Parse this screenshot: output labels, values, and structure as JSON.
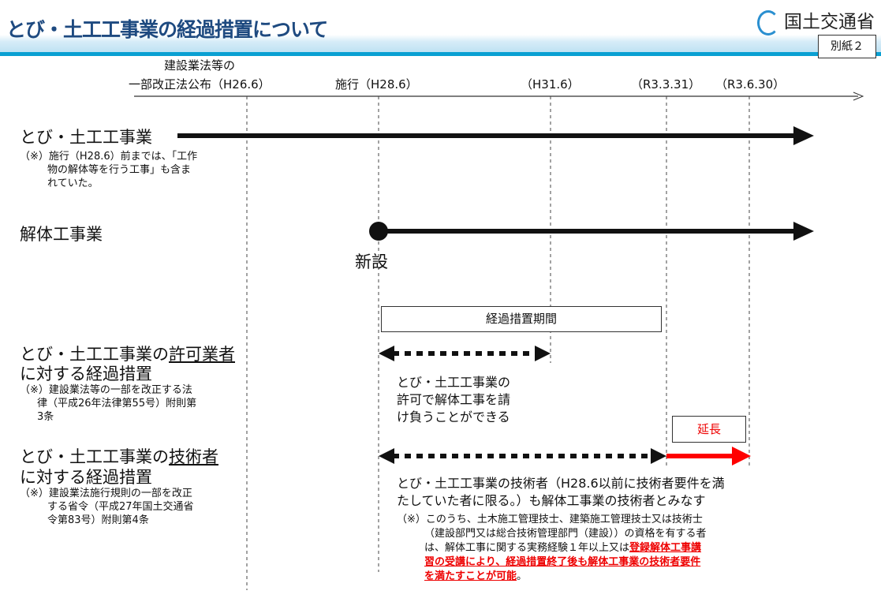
{
  "header": {
    "title": "とび・土工工事業の経過措置について",
    "logo_text": "国土交通省",
    "annex_label": "別紙２"
  },
  "timeline": {
    "ticks": [
      {
        "line1": "建設業法等の",
        "line2": "一部改正法公布（H26.6）"
      },
      {
        "label": "施行（H28.6）"
      },
      {
        "label": "（H31.6）"
      },
      {
        "label": "（R3.3.31）"
      },
      {
        "label": "（R3.6.30）"
      }
    ]
  },
  "rows": {
    "tobi": {
      "title": "とび・土工工事業",
      "note_lines": [
        "（※）施行（H28.6）前までは、「工作",
        "物の解体等を行う工事」も含ま",
        "れていた。"
      ]
    },
    "kaitai": {
      "title": "解体工事業",
      "new_label": "新設"
    },
    "period_box": "経過措置期間",
    "permit": {
      "title_pre": "とび・土工工事業の",
      "title_u": "許可業者",
      "title2": "に対する経過措置",
      "note_lines": [
        "（※）建設業法等の一部を改正する法",
        "律（平成26年法律第55号）附則第",
        "3条"
      ],
      "desc_lines": [
        "とび・土工工事業の",
        "許可で解体工事を請",
        "け負うことができる"
      ]
    },
    "engineer": {
      "title_pre": "とび・土工工事業の",
      "title_u": "技術者",
      "title2": "に対する経過措置",
      "note_lines": [
        "（※）建設業法施行規則の一部を改正",
        "する省令（平成27年国土交通省",
        "令第83号）附則第4条"
      ],
      "extension_label": "延長",
      "desc_lines": [
        "とび・土工工事業の技術者（H28.6以前に技術者要件を満",
        "たしていた者に限る。）も解体工事業の技術者とみなす"
      ],
      "sub_prefix": "（※）",
      "sub_lines": [
        "このうち、土木施工管理技士、建築施工管理技士又は技術士",
        "（建設部門又は総合技術管理部門（建設））の資格を有する者"
      ],
      "sub_line3": "は、解体工事に関する実務経験１年以上又は",
      "sub_red1": "登録解体工事講",
      "sub_red2": "習の受講により、経過措置終了後も解体工事業の技術者要件",
      "sub_red3": "を満たすことが可能",
      "sub_end": "。"
    }
  },
  "colors": {
    "title": "#1e4a80",
    "band": "#0aa0d2",
    "extension": "#ff0000"
  }
}
